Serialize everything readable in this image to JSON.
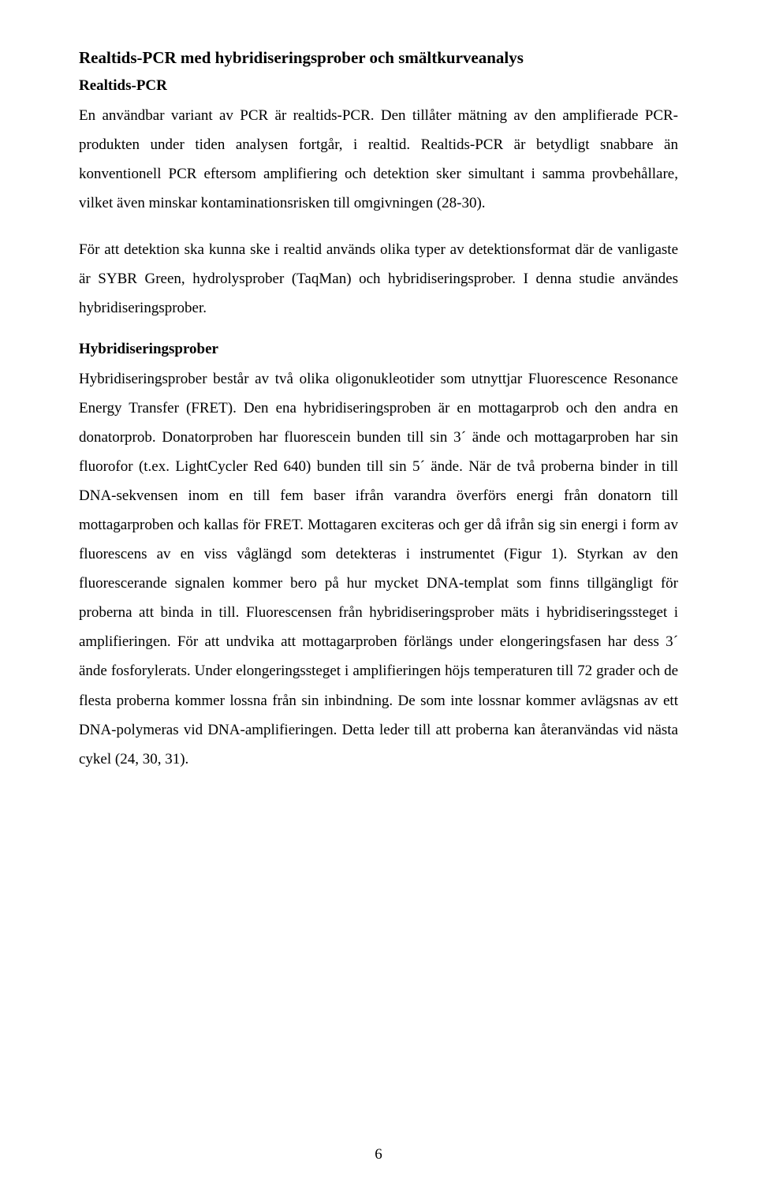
{
  "headings": {
    "main": "Realtids-PCR med hybridiseringsprober och smältkurveanalys",
    "sub1": "Realtids-PCR",
    "sub2": "Hybridiseringsprober"
  },
  "paragraphs": {
    "p1": "En användbar variant av PCR är realtids-PCR. Den tillåter mätning av den amplifierade PCR-produkten under tiden analysen fortgår, i realtid. Realtids-PCR är betydligt snabbare än konventionell PCR eftersom amplifiering och detektion sker simultant i samma provbehållare, vilket även minskar kontaminationsrisken till omgivningen (28-30).",
    "p2": "För att detektion ska kunna ske i realtid används olika typer av detektionsformat där de vanligaste är SYBR Green, hydrolysprober (TaqMan) och hybridiseringsprober. I denna studie användes hybridiseringsprober.",
    "p3": "Hybridiseringsprober består av två olika oligonukleotider som utnyttjar Fluorescence Resonance Energy Transfer (FRET). Den ena hybridiseringsproben är en mottagarprob och den andra en donatorprob. Donatorproben har fluorescein bunden till sin 3´ ände och mottagarproben har sin fluorofor (t.ex. LightCycler Red 640) bunden till sin 5´ ände. När de två proberna binder in till DNA-sekvensen inom en till fem baser ifrån varandra överförs energi från donatorn till mottagarproben och kallas för FRET. Mottagaren exciteras och ger då ifrån sig sin energi i form av fluorescens av en viss våglängd som detekteras i instrumentet (Figur 1). Styrkan av den fluorescerande signalen kommer bero på hur mycket DNA-templat som finns tillgängligt för proberna att binda in till. Fluorescensen från hybridiseringsprober mäts i hybridiseringssteget i amplifieringen. För att undvika att mottagarproben förlängs under elongeringsfasen har dess 3´ ände fosforylerats. Under elongeringssteget i amplifieringen höjs temperaturen till 72 grader och de flesta proberna kommer lossna från sin inbindning. De som inte lossnar kommer avlägsnas av ett DNA-polymeras vid DNA-amplifieringen. Detta leder till att proberna kan återanvändas vid nästa cykel (24, 30, 31)."
  },
  "pageNumber": "6"
}
